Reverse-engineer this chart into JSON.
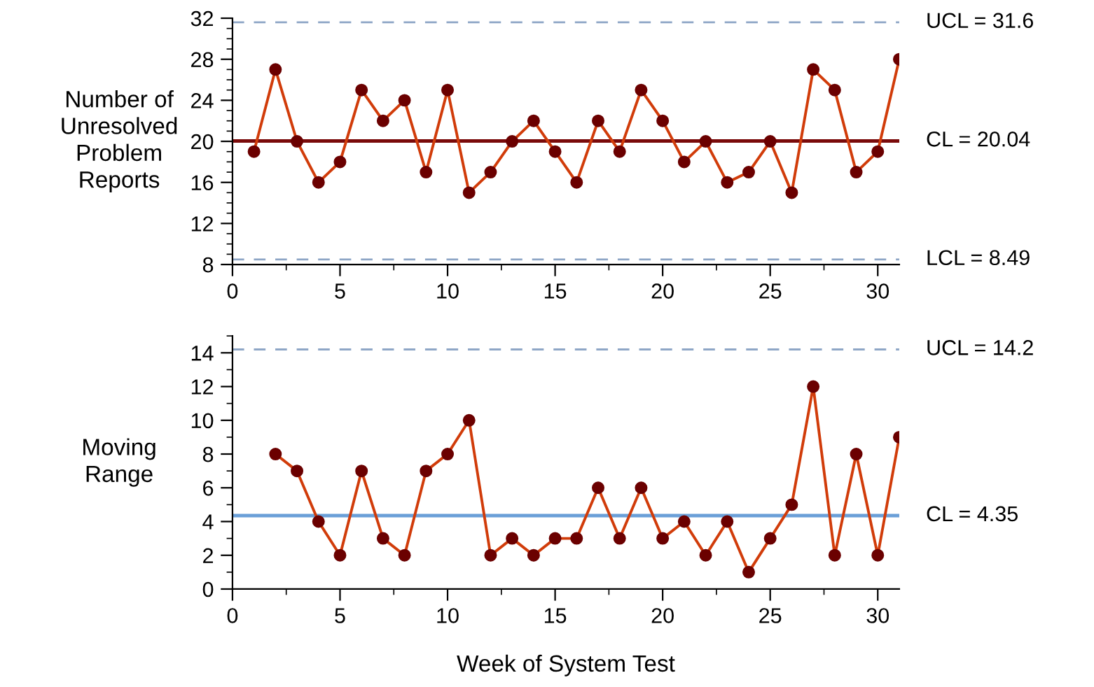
{
  "chart_data": [
    {
      "type": "line",
      "ylabel": "Number of\nUnresolved\nProblem\nReports",
      "xlim": [
        0,
        31
      ],
      "xticks": [
        0,
        5,
        10,
        15,
        20,
        25,
        30
      ],
      "ylim": [
        8,
        32
      ],
      "yticks": [
        8,
        12,
        16,
        20,
        24,
        28,
        32
      ],
      "grid": false,
      "marker": "circle",
      "line_style": "solid",
      "series": [
        {
          "color": "#d13c0a",
          "colors": [
            "#6b0000",
            "#6b0000",
            "#6b0000",
            "#6b0000",
            "#6b0000",
            "#6b0000",
            "#6b0000",
            "#6b0000",
            "#6b0000",
            "#6b0000",
            "#6b0000",
            "#6b0000",
            "#6b0000",
            "#6b0000",
            "#6b0000",
            "#6b0000",
            "#6b0000",
            "#6b0000",
            "#6b0000",
            "#6b0000",
            "#6b0000",
            "#6b0000",
            "#6b0000",
            "#6b0000",
            "#6b0000",
            "#6b0000",
            "#6b0000",
            "#6b0000",
            "#6b0000",
            "#6b0000",
            "#6b0000"
          ],
          "x": [
            1,
            2,
            3,
            4,
            5,
            6,
            7,
            8,
            9,
            10,
            11,
            12,
            13,
            14,
            15,
            16,
            17,
            18,
            19,
            20,
            21,
            22,
            23,
            24,
            25,
            26,
            27,
            28,
            29,
            30,
            31
          ],
          "values": [
            19,
            27,
            20,
            16,
            18,
            25,
            22,
            24,
            17,
            25,
            15,
            17,
            20,
            22,
            19,
            16,
            22,
            19,
            25,
            22,
            18,
            20,
            16,
            17,
            20,
            15,
            27,
            25,
            17,
            19,
            28
          ]
        }
      ],
      "ref_lines": [
        {
          "axis": "y",
          "value": 31.6,
          "label": "UCL = 31.6",
          "color": "#8ea6c6",
          "line_style": "dashed"
        },
        {
          "axis": "y",
          "value": 20.04,
          "label": "CL = 20.04",
          "color": "#7a0a0a",
          "line_style": "solid"
        },
        {
          "axis": "y",
          "value": 8.49,
          "label": "LCL = 8.49",
          "color": "#8ea6c6",
          "line_style": "dashed"
        }
      ]
    },
    {
      "type": "line",
      "ylabel": "Moving\nRange",
      "xlabel": "Week of System Test",
      "xlim": [
        0,
        31
      ],
      "xticks": [
        0,
        5,
        10,
        15,
        20,
        25,
        30
      ],
      "ylim": [
        0,
        15
      ],
      "yticks": [
        0,
        2,
        4,
        6,
        8,
        10,
        12,
        14
      ],
      "grid": false,
      "marker": "circle",
      "line_style": "solid",
      "series": [
        {
          "color": "#d13c0a",
          "colors": [
            "#6b0000",
            "#6b0000",
            "#6b0000",
            "#6b0000",
            "#6b0000",
            "#6b0000",
            "#6b0000",
            "#6b0000",
            "#6b0000",
            "#6b0000",
            "#6b0000",
            "#6b0000",
            "#6b0000",
            "#6b0000",
            "#6b0000",
            "#6b0000",
            "#6b0000",
            "#6b0000",
            "#6b0000",
            "#6b0000",
            "#6b0000",
            "#6b0000",
            "#6b0000",
            "#6b0000",
            "#6b0000",
            "#6b0000",
            "#6b0000",
            "#6b0000",
            "#6b0000",
            "#6b0000"
          ],
          "x": [
            2,
            3,
            4,
            5,
            6,
            7,
            8,
            9,
            10,
            11,
            12,
            13,
            14,
            15,
            16,
            17,
            18,
            19,
            20,
            21,
            22,
            23,
            24,
            25,
            26,
            27,
            28,
            29,
            30,
            31
          ],
          "values": [
            8,
            7,
            4,
            2,
            7,
            3,
            2,
            7,
            8,
            10,
            2,
            3,
            2,
            3,
            3,
            6,
            3,
            6,
            3,
            4,
            2,
            4,
            1,
            3,
            5,
            12,
            2,
            8,
            2,
            9
          ]
        }
      ],
      "ref_lines": [
        {
          "axis": "y",
          "value": 14.2,
          "label": "UCL = 14.2",
          "color": "#8ea6c6",
          "line_style": "dashed"
        },
        {
          "axis": "y",
          "value": 4.35,
          "label": "CL = 4.35",
          "color": "#6a9fd8",
          "line_style": "solid"
        }
      ]
    }
  ]
}
